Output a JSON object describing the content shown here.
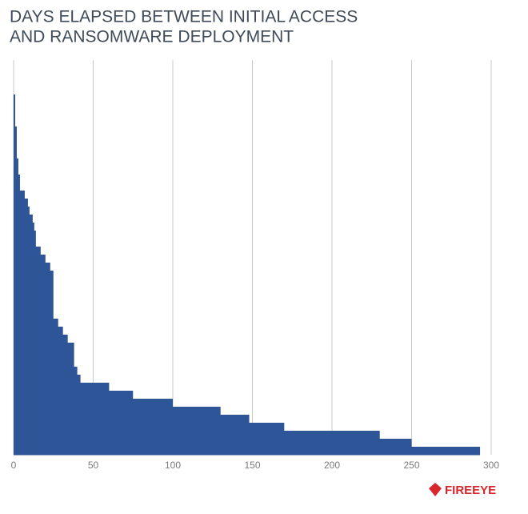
{
  "chart_data": {
    "type": "hbar",
    "title": [
      "DAYS ELAPSED BETWEEN INITIAL ACCESS",
      "AND RANSOMWARE DEPLOYMENT"
    ],
    "categories": [
      null,
      null,
      null,
      null,
      null,
      null,
      null,
      null,
      null,
      null,
      null,
      null,
      null,
      null,
      null,
      null,
      null,
      null,
      null,
      null,
      null,
      null,
      null,
      null,
      null,
      null,
      null,
      null,
      null,
      null,
      null,
      null,
      null,
      null,
      null,
      null,
      null,
      null,
      null,
      null,
      null,
      null,
      null,
      null,
      null
    ],
    "values": [
      1,
      1,
      1,
      1,
      2,
      2,
      2,
      2,
      3,
      3,
      4,
      4,
      7,
      9,
      10,
      12,
      13,
      14,
      14,
      17,
      20,
      23,
      25,
      25,
      25,
      25,
      25,
      25,
      28,
      31,
      34,
      38,
      38,
      38,
      40,
      42,
      60,
      75,
      100,
      130,
      148,
      170,
      230,
      250,
      293
    ],
    "color": "#2e5597",
    "xlim": [
      0,
      300
    ],
    "xticks": [
      0,
      50,
      100,
      150,
      200,
      250,
      300
    ],
    "grid": true
  },
  "logo": "FIREEYE"
}
